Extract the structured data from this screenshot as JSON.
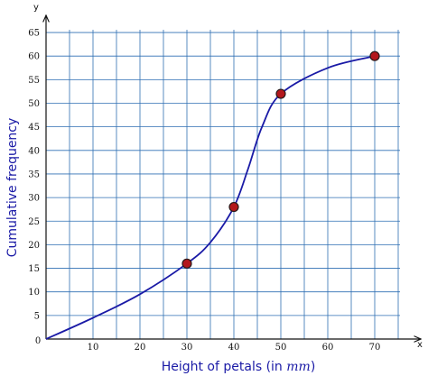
{
  "chart_data": {
    "type": "line",
    "xlabel": "Height of petals (in ",
    "xlabel_unit": "mm",
    "xlabel_close": ")",
    "ylabel": "Cumulative frequency",
    "x_axis_name": "x",
    "y_axis_name": "y",
    "origin_label": "0",
    "xlim": [
      0,
      80
    ],
    "ylim": [
      0,
      65
    ],
    "x_ticks": [
      10,
      20,
      30,
      40,
      50,
      60,
      70
    ],
    "y_ticks": [
      5,
      10,
      15,
      20,
      25,
      30,
      35,
      40,
      45,
      50,
      55,
      60,
      65
    ],
    "grid": true,
    "points": [
      {
        "x": 30,
        "y": 16
      },
      {
        "x": 40,
        "y": 28
      },
      {
        "x": 50,
        "y": 52
      },
      {
        "x": 70,
        "y": 60
      }
    ],
    "curve": [
      {
        "x": 0,
        "y": 0
      },
      {
        "x": 10,
        "y": 4.5
      },
      {
        "x": 20,
        "y": 9.5
      },
      {
        "x": 30,
        "y": 16
      },
      {
        "x": 35,
        "y": 20.5
      },
      {
        "x": 40,
        "y": 28
      },
      {
        "x": 43,
        "y": 36
      },
      {
        "x": 46,
        "y": 45
      },
      {
        "x": 50,
        "y": 52
      },
      {
        "x": 60,
        "y": 57.5
      },
      {
        "x": 70,
        "y": 60
      }
    ],
    "colors": {
      "grid": "#2f6fb3",
      "curve": "#1a1aa6",
      "label": "#1a1aa6",
      "marker_fill": "#b3171c",
      "marker_stroke": "#2a1a1a",
      "axis": "#111111"
    }
  }
}
